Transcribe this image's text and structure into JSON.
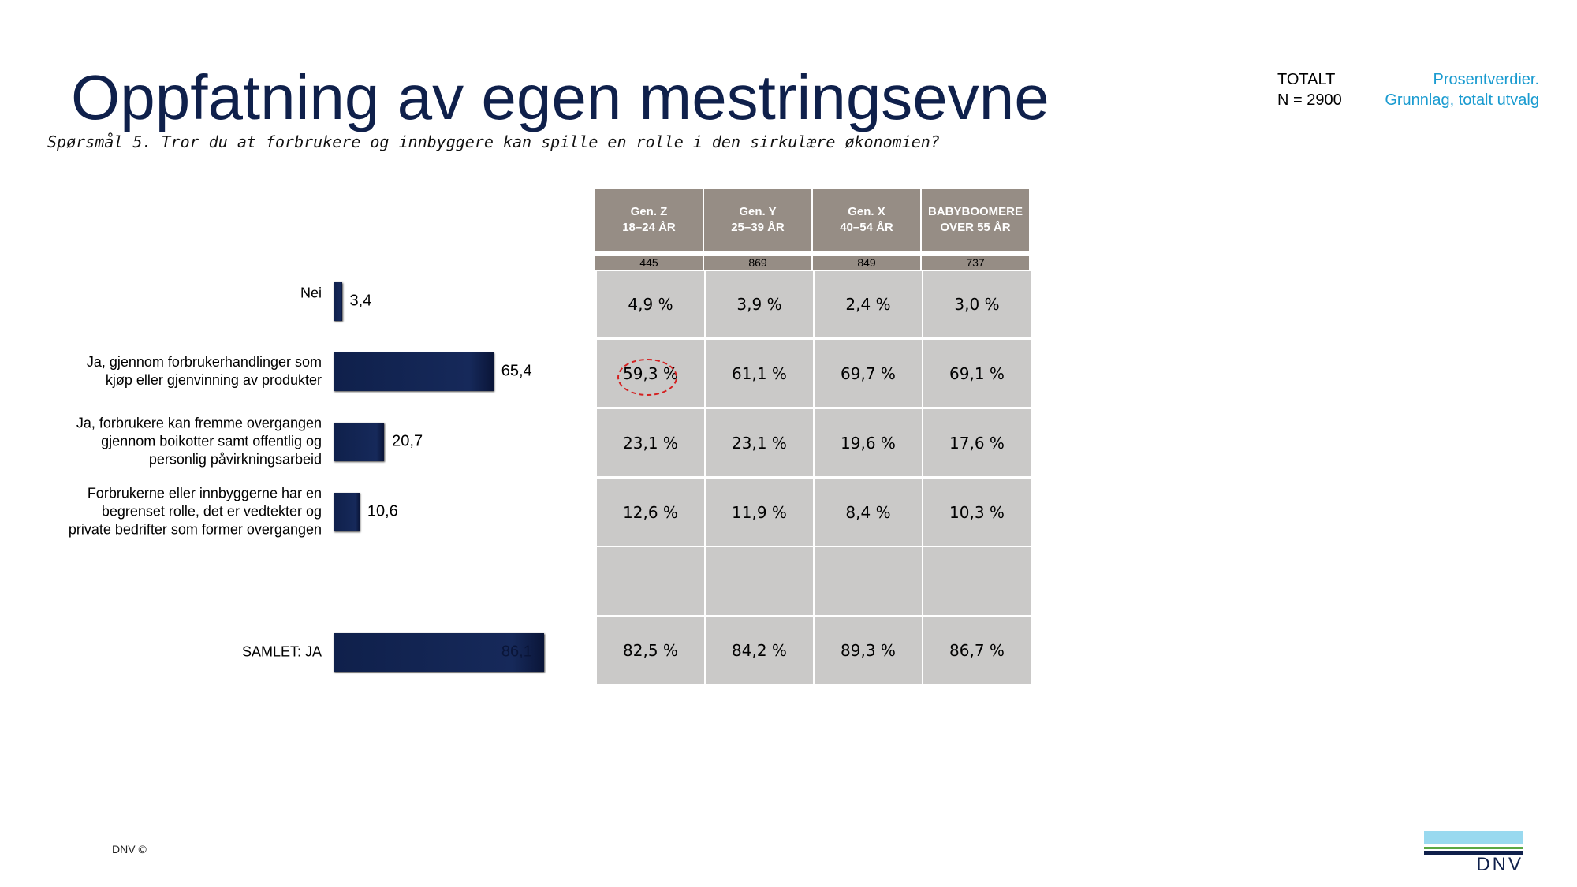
{
  "title": "Oppfatning av egen mestringsevne",
  "subtitle": "Spørsmål 5. Tror du at forbrukere og innbyggere kan spille en rolle i den sirkulære økonomien?",
  "totalt": {
    "line1": "TOTALT",
    "line2": "N = 2900"
  },
  "basis": {
    "line1": "Prosentverdier.",
    "line2": "Grunnlag, totalt utvalg"
  },
  "footer": "DNV ©",
  "logo_text": "DNV",
  "colors": {
    "bar": "#0f204b",
    "header": "#968d85",
    "cell": "#cac9c8",
    "accent": "#1a9bd0",
    "highlight": "#d42020"
  },
  "chart_data": {
    "type": "bar",
    "orientation": "horizontal",
    "categories": [
      "Nei",
      "Ja, gjennom forbrukerhandlinger som kjøp eller gjenvinning av produkter",
      "Ja, forbrukere kan fremme overgangen gjennom boikotter samt offentlig og personlig påvirkningsarbeid",
      "Forbrukerne eller innbyggerne har en begrenset rolle, det er vedtekter og private bedrifter som former overgangen",
      "SAMLET: JA"
    ],
    "values": [
      3.4,
      65.4,
      20.7,
      10.6,
      86.1
    ],
    "labels": [
      "3,4",
      "65,4",
      "20,7",
      "10,6",
      "86,1"
    ]
  },
  "table": {
    "headers": [
      [
        "Gen. Z",
        "18–24 ÅR"
      ],
      [
        "Gen. Y",
        "25–39 ÅR"
      ],
      [
        "Gen. X",
        "40–54 ÅR"
      ],
      [
        "BABYBOOMERE",
        "OVER 55 ÅR"
      ]
    ],
    "n": [
      "445",
      "869",
      "849",
      "737"
    ],
    "rows": [
      [
        "4,9 %",
        "3,9 %",
        "2,4 %",
        "3,0 %"
      ],
      [
        "59,3 %",
        "61,1 %",
        "69,7 %",
        "69,1 %"
      ],
      [
        "23,1 %",
        "23,1 %",
        "19,6 %",
        "17,6 %"
      ],
      [
        "12,6 %",
        "11,9 %",
        "8,4 %",
        "10,3 %"
      ],
      [
        "",
        "",
        "",
        ""
      ],
      [
        "82,5 %",
        "84,2 %",
        "89,3 %",
        "86,7 %"
      ]
    ],
    "highlighted_cell": "59,3 %"
  }
}
